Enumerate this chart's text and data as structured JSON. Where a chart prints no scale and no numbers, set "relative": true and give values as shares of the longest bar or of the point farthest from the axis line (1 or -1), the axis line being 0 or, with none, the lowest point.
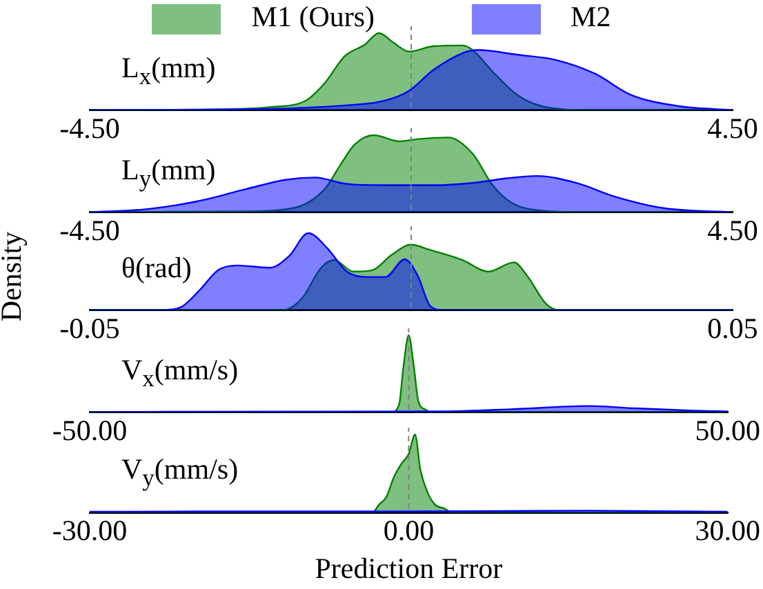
{
  "chart_data": [
    {
      "type": "area",
      "relative": true,
      "legend": "top",
      "annotations": [
        "L$_{x}$(mm)"
      ],
      "xlim": [
        -4.5,
        4.5
      ],
      "xticks": [
        {
          "value": -4.5,
          "label": "-4.50"
        },
        {
          "value": 4.5,
          "label": "4.50"
        }
      ],
      "ref_lines": [
        {
          "axis": "x",
          "value": 0,
          "color": "#808080",
          "line_style": "dashed"
        }
      ],
      "series": [
        {
          "name": "M1 (Ours)",
          "color": "#008000",
          "x": [
            -4.5,
            -2.65,
            -1.96,
            -1.48,
            -1.21,
            -0.93,
            -0.65,
            -0.45,
            -0.24,
            -0.03,
            0.31,
            0.72,
            0.86,
            1.14,
            1.48,
            1.83,
            2.52,
            4.5
          ],
          "values": [
            0,
            0.01,
            0.04,
            0.12,
            0.35,
            0.7,
            0.85,
            1,
            0.87,
            0.76,
            0.83,
            0.84,
            0.78,
            0.5,
            0.2,
            0.05,
            0,
            0
          ]
        },
        {
          "name": "M2",
          "color": "#0000ff",
          "x": [
            -4.5,
            -2.31,
            -0.93,
            -0.38,
            -0.03,
            0.31,
            0.72,
            0.93,
            1.48,
            2.03,
            2.58,
            3.07,
            3.76,
            4.5
          ],
          "values": [
            0,
            0.01,
            0.06,
            0.12,
            0.25,
            0.52,
            0.74,
            0.78,
            0.72,
            0.65,
            0.47,
            0.2,
            0.05,
            0
          ]
        }
      ]
    },
    {
      "type": "area",
      "relative": true,
      "annotations": [
        "L$_{y}$(mm)"
      ],
      "xlim": [
        -4.5,
        4.5
      ],
      "xticks": [
        {
          "value": -4.5,
          "label": "-4.50"
        },
        {
          "value": 4.5,
          "label": "4.50"
        }
      ],
      "ref_lines": [
        {
          "axis": "x",
          "value": 0,
          "color": "#808080",
          "line_style": "dashed"
        }
      ],
      "series": [
        {
          "color": "#008000",
          "x": [
            -4.5,
            -2.31,
            -1.62,
            -1.21,
            -1.0,
            -0.79,
            -0.52,
            -0.17,
            0.1,
            0.52,
            0.86,
            1.14,
            1.41,
            1.83,
            2.52,
            4.5
          ],
          "values": [
            0,
            0.01,
            0.06,
            0.3,
            0.6,
            0.88,
            1,
            0.92,
            0.95,
            0.97,
            0.76,
            0.35,
            0.12,
            0.02,
            0,
            0
          ]
        },
        {
          "color": "#0000ff",
          "x": [
            -4.5,
            -3.69,
            -3.0,
            -2.31,
            -1.76,
            -1.34,
            -0.93,
            -0.38,
            0.31,
            0.86,
            1.34,
            1.76,
            2.31,
            2.86,
            3.55,
            4.5
          ],
          "values": [
            0,
            0.04,
            0.14,
            0.3,
            0.42,
            0.45,
            0.37,
            0.35,
            0.35,
            0.38,
            0.44,
            0.47,
            0.38,
            0.2,
            0.05,
            0
          ]
        }
      ]
    },
    {
      "type": "area",
      "relative": true,
      "ylabel": "Density",
      "annotations": [
        "θ(rad)"
      ],
      "xlim": [
        -0.05,
        0.05
      ],
      "xticks": [
        -0.05,
        0.05
      ],
      "ref_lines": [
        {
          "axis": "x",
          "value": 0,
          "color": "#808080",
          "line_style": "dashed"
        }
      ],
      "series": [
        {
          "color": "#008000",
          "x": [
            -0.05,
            -0.02,
            -0.017,
            -0.014,
            -0.012,
            -0.009,
            -0.006,
            -0.003,
            0.0,
            0.003,
            0.008,
            0.012,
            0.016,
            0.018,
            0.021,
            0.023,
            0.05
          ],
          "values": [
            0,
            0,
            0.15,
            0.55,
            0.65,
            0.5,
            0.52,
            0.72,
            0.85,
            0.78,
            0.65,
            0.5,
            0.62,
            0.45,
            0.08,
            0,
            0
          ]
        },
        {
          "color": "#0000ff",
          "x": [
            -0.05,
            -0.039,
            -0.036,
            -0.033,
            -0.03,
            -0.027,
            -0.022,
            -0.019,
            -0.016,
            -0.013,
            -0.01,
            -0.007,
            -0.004,
            -0.001,
            0.001,
            0.003,
            0.005,
            0.05
          ],
          "values": [
            0,
            0,
            0.03,
            0.25,
            0.52,
            0.58,
            0.55,
            0.7,
            1,
            0.8,
            0.5,
            0.43,
            0.43,
            0.66,
            0.45,
            0.05,
            0,
            0
          ]
        }
      ]
    },
    {
      "type": "area",
      "relative": true,
      "annotations": [
        "V$_{x}$(mm/s)"
      ],
      "xlim": [
        -50,
        50
      ],
      "xticks": [
        {
          "value": -50,
          "label": "-50.00"
        },
        {
          "value": 50,
          "label": "50.00"
        }
      ],
      "ref_lines": [
        {
          "axis": "x",
          "value": 0,
          "color": "#808080",
          "line_style": "dashed"
        }
      ],
      "series": [
        {
          "color": "#008000",
          "x": [
            -50,
            -2.7,
            -1.5,
            -0.8,
            0,
            0.8,
            1.5,
            2.7,
            3.4,
            50
          ],
          "values": [
            0,
            0,
            0.1,
            0.6,
            1,
            0.6,
            0.15,
            0.03,
            0,
            0
          ]
        },
        {
          "color": "#0000ff",
          "x": [
            -50,
            -37.9,
            5,
            16.5,
            28,
            35.6,
            44.8,
            50
          ],
          "values": [
            0,
            0.005,
            0.01,
            0.04,
            0.08,
            0.05,
            0.02,
            0.01
          ]
        }
      ]
    },
    {
      "type": "area",
      "relative": true,
      "xlabel": "Prediction Error",
      "annotations": [
        "V$_{y}$(mm/s)"
      ],
      "xlim": [
        -30,
        30
      ],
      "xticks": [
        {
          "value": -30,
          "label": "-30.00"
        },
        {
          "value": 0,
          "label": "0.00"
        },
        {
          "value": 30,
          "label": "30.00"
        }
      ],
      "ref_lines": [
        {
          "axis": "x",
          "value": 0,
          "color": "#808080",
          "line_style": "dashed"
        }
      ],
      "series": [
        {
          "color": "#008000",
          "x": [
            -30,
            -3.4,
            -2.8,
            -2.1,
            -1.4,
            -0.7,
            0,
            0.6,
            1.1,
            1.8,
            2.5,
            3.4,
            4.1,
            30
          ],
          "values": [
            0,
            0,
            0.1,
            0.2,
            0.45,
            0.62,
            0.75,
            1,
            0.55,
            0.25,
            0.1,
            0.05,
            0,
            0
          ]
        },
        {
          "color": "#0000ff",
          "x": [
            -30,
            -20,
            0,
            17,
            30
          ],
          "values": [
            0.01,
            0.015,
            0.015,
            0.025,
            0.01
          ]
        }
      ]
    }
  ]
}
